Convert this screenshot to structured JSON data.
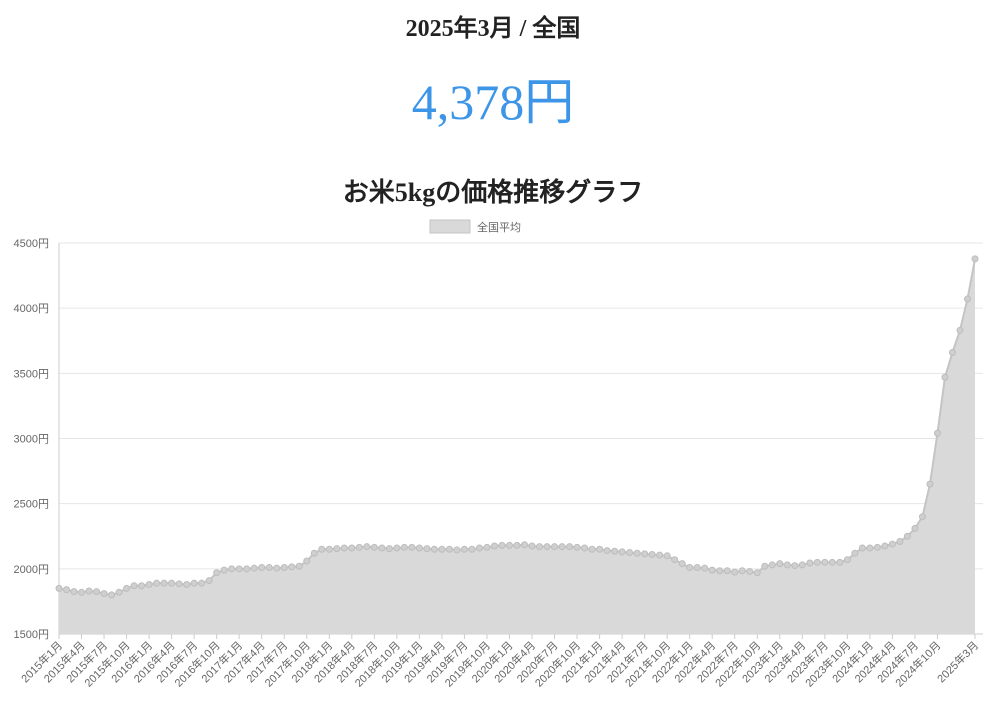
{
  "header": {
    "period": "2025年3月 / 全国",
    "price": "4,378円"
  },
  "chart_data": {
    "type": "area",
    "title": "お米5kgの価格推移グラフ",
    "categories": [
      "2015年1月",
      null,
      null,
      "2015年4月",
      null,
      null,
      "2015年7月",
      null,
      null,
      "2015年10月",
      null,
      null,
      "2016年1月",
      null,
      null,
      "2016年4月",
      null,
      null,
      "2016年7月",
      null,
      null,
      "2016年10月",
      null,
      null,
      "2017年1月",
      null,
      null,
      "2017年4月",
      null,
      null,
      "2017年7月",
      null,
      null,
      "2017年10月",
      null,
      null,
      "2018年1月",
      null,
      null,
      "2018年4月",
      null,
      null,
      "2018年7月",
      null,
      null,
      "2018年10月",
      null,
      null,
      "2019年1月",
      null,
      null,
      "2019年4月",
      null,
      null,
      "2019年7月",
      null,
      null,
      "2019年10月",
      null,
      null,
      "2020年1月",
      null,
      null,
      "2020年4月",
      null,
      null,
      "2020年7月",
      null,
      null,
      "2020年10月",
      null,
      null,
      "2021年1月",
      null,
      null,
      "2021年4月",
      null,
      null,
      "2021年7月",
      null,
      null,
      "2021年10月",
      null,
      null,
      "2022年1月",
      null,
      null,
      "2022年4月",
      null,
      null,
      "2022年7月",
      null,
      null,
      "2022年10月",
      null,
      null,
      "2023年1月",
      null,
      null,
      "2023年4月",
      null,
      null,
      "2023年7月",
      null,
      null,
      "2023年10月",
      null,
      null,
      "2024年1月",
      null,
      null,
      "2024年4月",
      null,
      null,
      "2024年7月",
      null,
      null,
      "2024年10月",
      null,
      null,
      null,
      null,
      "2025年3月"
    ],
    "series": [
      {
        "name": "全国平均",
        "color": "#d9d9d9",
        "values": [
          1850,
          1840,
          1825,
          1820,
          1830,
          1825,
          1810,
          1800,
          1820,
          1850,
          1870,
          1870,
          1880,
          1890,
          1890,
          1890,
          1885,
          1880,
          1890,
          1890,
          1910,
          1970,
          1990,
          2000,
          2000,
          2000,
          2005,
          2010,
          2010,
          2005,
          2010,
          2015,
          2020,
          2060,
          2120,
          2150,
          2150,
          2155,
          2160,
          2160,
          2165,
          2170,
          2165,
          2160,
          2155,
          2160,
          2165,
          2165,
          2160,
          2155,
          2150,
          2150,
          2150,
          2145,
          2150,
          2150,
          2160,
          2165,
          2175,
          2180,
          2180,
          2180,
          2185,
          2175,
          2170,
          2170,
          2170,
          2170,
          2170,
          2165,
          2160,
          2150,
          2150,
          2140,
          2135,
          2130,
          2125,
          2120,
          2115,
          2110,
          2105,
          2100,
          2070,
          2040,
          2010,
          2010,
          2005,
          1990,
          1985,
          1985,
          1975,
          1985,
          1980,
          1970,
          2020,
          2030,
          2040,
          2030,
          2025,
          2030,
          2045,
          2050,
          2050,
          2050,
          2050,
          2070,
          2120,
          2160,
          2160,
          2165,
          2175,
          2190,
          2210,
          2250,
          2310,
          2400,
          2650,
          3040,
          3470,
          3660,
          3830,
          4070,
          4378
        ]
      }
    ],
    "ylim": [
      1500,
      4500
    ],
    "yticks": [
      {
        "value": 1500,
        "label": "1500円"
      },
      {
        "value": 2000,
        "label": "2000円"
      },
      {
        "value": 2500,
        "label": "2500円"
      },
      {
        "value": 3000,
        "label": "3000円"
      },
      {
        "value": 3500,
        "label": "3500円"
      },
      {
        "value": 4000,
        "label": "4000円"
      },
      {
        "value": 4500,
        "label": "4500円"
      }
    ],
    "grid": true,
    "legend": "top"
  }
}
